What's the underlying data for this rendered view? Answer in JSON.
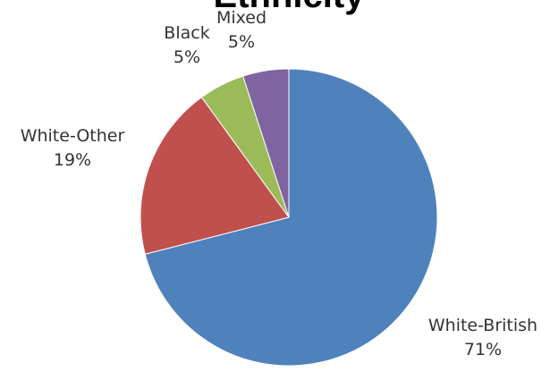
{
  "chart_data": {
    "type": "pie",
    "title": "Ethnicity",
    "legend": "none",
    "slices": [
      {
        "label": "White-British",
        "value": 71,
        "value_label": "71%",
        "color": "#4F81BD"
      },
      {
        "label": "White-Other",
        "value": 19,
        "value_label": "19%",
        "color": "#C0504D"
      },
      {
        "label": "Black",
        "value": 5,
        "value_label": "5%",
        "color": "#9BBB59"
      },
      {
        "label": "Mixed",
        "value": 5,
        "value_label": "5%",
        "color": "#8064A2"
      }
    ]
  }
}
